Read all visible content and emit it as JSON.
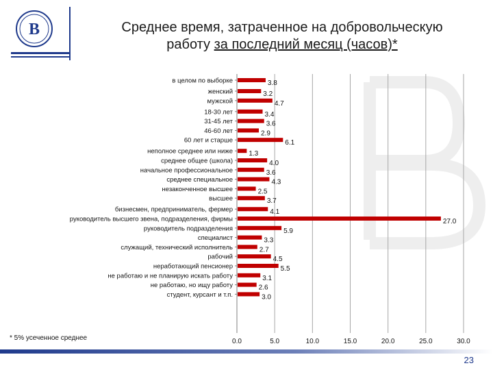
{
  "header": {
    "title_line1": "Среднее время, затраченное на добровольческую",
    "title_line2_plain": "работу ",
    "title_line2_underlined": "за последний месяц (часов)*"
  },
  "footnote": "* 5% усеченное среднее",
  "page_number": "23",
  "colors": {
    "bar": "#c00000",
    "accent": "#1f3a8c",
    "grid": "#a6a6a6"
  },
  "chart_data": {
    "type": "bar",
    "orientation": "horizontal",
    "xlim": [
      0,
      30
    ],
    "xticks": [
      "0.0",
      "5.0",
      "10.0",
      "15.0",
      "20.0",
      "25.0",
      "30.0"
    ],
    "grid": true,
    "groups": [
      {
        "rows": [
          {
            "label": "в целом по выборке",
            "value": 3.8,
            "text": "3.8"
          }
        ]
      },
      {
        "rows": [
          {
            "label": "женский",
            "value": 3.2,
            "text": "3.2"
          },
          {
            "label": "мужской",
            "value": 4.7,
            "text": "4.7"
          }
        ]
      },
      {
        "rows": [
          {
            "label": "18-30 лет",
            "value": 3.4,
            "text": "3.4"
          },
          {
            "label": "31-45 лет",
            "value": 3.6,
            "text": "3.6"
          },
          {
            "label": "46-60 лет",
            "value": 2.9,
            "text": "2.9"
          },
          {
            "label": "60 лет и старше",
            "value": 6.1,
            "text": "6.1"
          }
        ]
      },
      {
        "rows": [
          {
            "label": "неполное среднее или ниже",
            "value": 1.3,
            "text": "1.3"
          },
          {
            "label": "среднее общее (школа)",
            "value": 4.0,
            "text": "4.0"
          },
          {
            "label": "начальное профессиональное",
            "value": 3.6,
            "text": "3.6"
          },
          {
            "label": "среднее специальное",
            "value": 4.3,
            "text": "4.3"
          },
          {
            "label": "незаконченное высшее",
            "value": 2.5,
            "text": "2.5"
          },
          {
            "label": "высшее",
            "value": 3.7,
            "text": "3.7"
          }
        ]
      },
      {
        "rows": [
          {
            "label": "бизнесмен, предприниматель, фермер",
            "value": 4.1,
            "text": "4.1"
          },
          {
            "label": "руководитель высшего звена, подразделения, фирмы",
            "value": 27.0,
            "text": "27.0"
          },
          {
            "label": "руководитель подразделения",
            "value": 5.9,
            "text": "5.9"
          },
          {
            "label": "специалист",
            "value": 3.3,
            "text": "3.3"
          },
          {
            "label": "служащий, технический исполнитель",
            "value": 2.7,
            "text": "2.7"
          },
          {
            "label": "рабочий",
            "value": 4.5,
            "text": "4.5"
          },
          {
            "label": "неработающий пенсионер",
            "value": 5.5,
            "text": "5.5"
          },
          {
            "label": "не работаю и не планирую искать работу",
            "value": 3.1,
            "text": "3.1"
          },
          {
            "label": "не работаю, но ищу работу",
            "value": 2.6,
            "text": "2.6"
          },
          {
            "label": "студент, курсант и т.п.",
            "value": 3.0,
            "text": "3.0"
          }
        ]
      }
    ]
  }
}
